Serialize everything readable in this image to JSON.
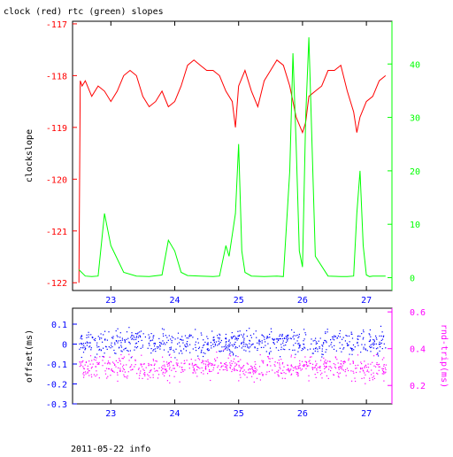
{
  "title": "clock (red) rtc (green) slopes",
  "footer": "2011-05-22 info",
  "chart_data": [
    {
      "type": "line",
      "xlim": [
        22.4,
        27.4
      ],
      "x_ticks": [
        23,
        24,
        25,
        26,
        27
      ],
      "x_tick_labels": [
        "23",
        "24",
        "25",
        "26",
        "27"
      ],
      "left_axis": {
        "label": "clockslope",
        "color": "#ff0000",
        "ylim": [
          -122.15,
          -116.95
        ],
        "ticks": [
          -117,
          -118,
          -119,
          -120,
          -121,
          -122
        ],
        "tick_labels": [
          "-117",
          "-118",
          "-119",
          "-120",
          "-121",
          "-122"
        ]
      },
      "right_axis": {
        "label": "",
        "color": "#00ff00",
        "ylim": [
          -2.4,
          48
        ],
        "ticks": [
          0,
          10,
          20,
          30,
          40
        ],
        "tick_labels": [
          "0",
          "10",
          "20",
          "30",
          "40"
        ]
      },
      "series": [
        {
          "axis": "left",
          "color": "#ff0000",
          "x": [
            22.5,
            22.52,
            22.55,
            22.6,
            22.7,
            22.8,
            22.9,
            23.0,
            23.1,
            23.2,
            23.3,
            23.4,
            23.5,
            23.6,
            23.7,
            23.8,
            23.9,
            24.0,
            24.1,
            24.2,
            24.3,
            24.4,
            24.5,
            24.6,
            24.7,
            24.8,
            24.9,
            24.95,
            25.0,
            25.1,
            25.2,
            25.3,
            25.4,
            25.5,
            25.6,
            25.7,
            25.8,
            25.9,
            26.0,
            26.05,
            26.1,
            26.2,
            26.3,
            26.4,
            26.5,
            26.6,
            26.7,
            26.8,
            26.85,
            26.9,
            27.0,
            27.1,
            27.2,
            27.3
          ],
          "y": [
            -122.0,
            -118.1,
            -118.2,
            -118.1,
            -118.4,
            -118.2,
            -118.3,
            -118.5,
            -118.3,
            -118.0,
            -117.9,
            -118.0,
            -118.4,
            -118.6,
            -118.5,
            -118.3,
            -118.6,
            -118.5,
            -118.2,
            -117.8,
            -117.7,
            -117.8,
            -117.9,
            -117.9,
            -118.0,
            -118.3,
            -118.5,
            -119.0,
            -118.2,
            -117.9,
            -118.3,
            -118.6,
            -118.1,
            -117.9,
            -117.7,
            -117.8,
            -118.2,
            -118.8,
            -119.1,
            -118.9,
            -118.4,
            -118.3,
            -118.2,
            -117.9,
            -117.9,
            -117.8,
            -118.3,
            -118.7,
            -119.1,
            -118.8,
            -118.5,
            -118.4,
            -118.1,
            -118.0
          ]
        },
        {
          "axis": "right",
          "color": "#00ff00",
          "x": [
            22.5,
            22.6,
            22.7,
            22.8,
            22.9,
            23.0,
            23.2,
            23.4,
            23.6,
            23.8,
            23.9,
            24.0,
            24.1,
            24.2,
            24.4,
            24.6,
            24.7,
            24.8,
            24.85,
            24.9,
            24.95,
            25.0,
            25.05,
            25.1,
            25.2,
            25.4,
            25.6,
            25.7,
            25.8,
            25.85,
            25.9,
            25.95,
            26.0,
            26.05,
            26.1,
            26.2,
            26.4,
            26.6,
            26.7,
            26.8,
            26.85,
            26.9,
            26.95,
            27.0,
            27.05,
            27.1,
            27.2,
            27.3
          ],
          "y": [
            1.5,
            0.3,
            0.2,
            0.3,
            12.0,
            6.0,
            1.0,
            0.3,
            0.2,
            0.5,
            7.0,
            5.0,
            1.0,
            0.4,
            0.3,
            0.2,
            0.3,
            6.0,
            4.0,
            8.0,
            12.0,
            25.0,
            5.0,
            1.0,
            0.3,
            0.2,
            0.3,
            0.2,
            20.0,
            42.0,
            25.0,
            5.0,
            2.0,
            30.0,
            45.0,
            4.0,
            0.3,
            0.2,
            0.2,
            0.3,
            12.0,
            20.0,
            6.0,
            0.5,
            0.2,
            0.3,
            0.3,
            0.3
          ]
        }
      ]
    },
    {
      "type": "scatter",
      "xlim": [
        22.4,
        27.4
      ],
      "x_ticks": [
        23,
        24,
        25,
        26,
        27
      ],
      "x_tick_labels": [
        "23",
        "24",
        "25",
        "26",
        "27"
      ],
      "left_axis": {
        "label": "offset(ms)",
        "color": "#0000ff",
        "ylim": [
          -0.3,
          0.18
        ],
        "ticks": [
          0.1,
          0,
          -0.1,
          -0.2,
          -0.3
        ],
        "tick_labels": [
          "0.1",
          "0",
          "-0.1",
          "-0.2",
          "-0.3"
        ]
      },
      "right_axis": {
        "label": "rnd-trip(ms)",
        "color": "#ff00ff",
        "ylim": [
          0.1,
          0.62
        ],
        "ticks": [
          0.6,
          0.4,
          0.2
        ],
        "tick_labels": [
          "0.6",
          "0.4",
          "0.2"
        ]
      },
      "series": [
        {
          "axis": "left",
          "color": "#0000ff",
          "description_band": [
            -0.05,
            0.07
          ],
          "x": [
            22.5,
            23.0,
            23.5,
            24.0,
            24.5,
            24.75,
            25.0,
            25.5,
            26.0,
            26.5,
            27.0,
            27.3
          ],
          "y": [
            0.01,
            0.01,
            0.02,
            0.01,
            0.01,
            0.0,
            0.01,
            0.02,
            0.01,
            0.01,
            0.02,
            0.01
          ]
        },
        {
          "axis": "right",
          "color": "#ff00ff",
          "x": [
            22.5,
            23.0,
            23.5,
            24.0,
            24.5,
            24.75,
            25.0,
            25.5,
            26.0,
            26.5,
            27.0,
            27.3
          ],
          "y": [
            0.3,
            0.3,
            0.29,
            0.3,
            0.3,
            0.32,
            0.3,
            0.29,
            0.3,
            0.3,
            0.29,
            0.3
          ]
        }
      ]
    }
  ]
}
